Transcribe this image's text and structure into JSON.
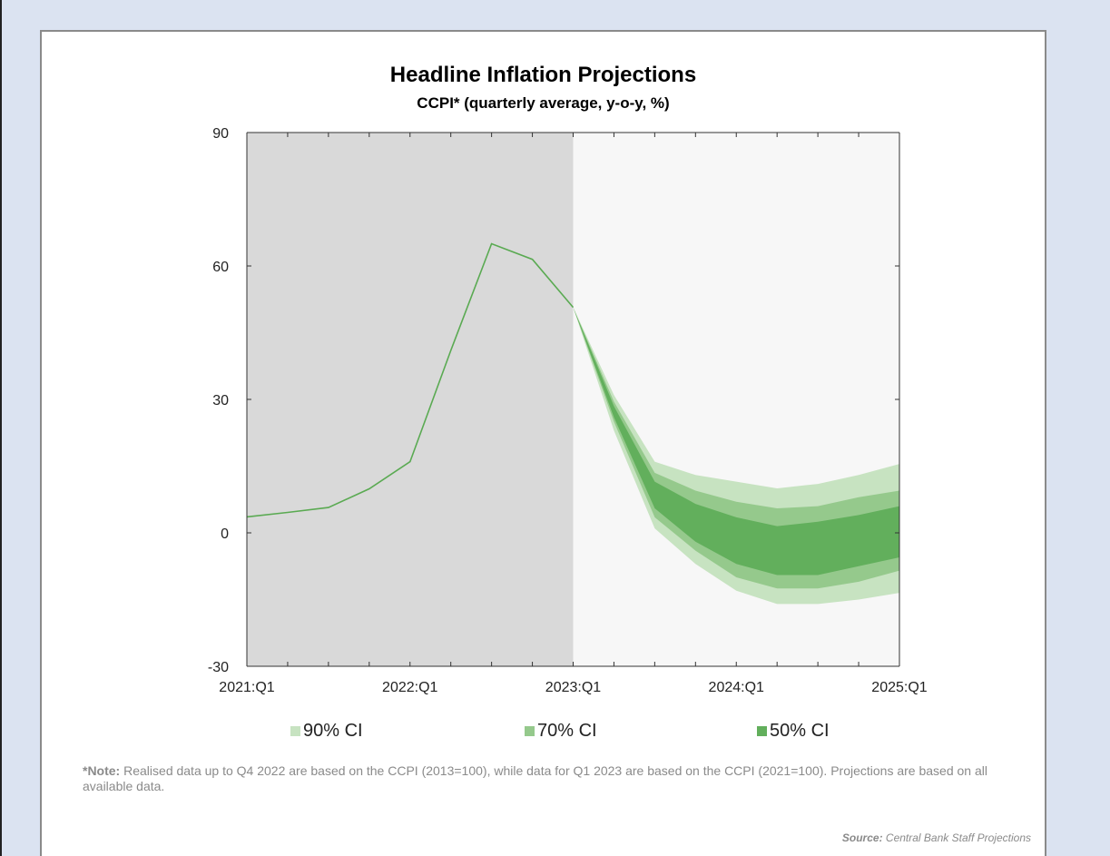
{
  "chart_data": {
    "type": "area",
    "title": "Headline Inflation Projections",
    "subtitle": "CCPI* (quarterly average, y-o-y, %)",
    "ylim": [
      -30,
      90
    ],
    "yticks": [
      -30,
      0,
      30,
      60,
      90
    ],
    "x_categories": [
      "2021:Q1",
      "2021:Q2",
      "2021:Q3",
      "2021:Q4",
      "2022:Q1",
      "2022:Q2",
      "2022:Q3",
      "2022:Q4",
      "2023:Q1",
      "2023:Q2",
      "2023:Q3",
      "2023:Q4",
      "2024:Q1",
      "2024:Q2",
      "2024:Q3",
      "2024:Q4",
      "2025:Q1"
    ],
    "x_tick_labels": [
      {
        "index": 0,
        "label": "2021:Q1"
      },
      {
        "index": 4,
        "label": "2022:Q1"
      },
      {
        "index": 8,
        "label": "2023:Q1"
      },
      {
        "index": 12,
        "label": "2024:Q1"
      },
      {
        "index": 16,
        "label": "2025:Q1"
      }
    ],
    "historical_region": [
      "2021:Q1",
      "2023:Q1"
    ],
    "actual": {
      "x": [
        "2021:Q1",
        "2021:Q2",
        "2021:Q3",
        "2021:Q4",
        "2022:Q1",
        "2022:Q2",
        "2022:Q3",
        "2022:Q4",
        "2023:Q1"
      ],
      "values": [
        3.6,
        4.6,
        5.7,
        9.9,
        16.0,
        41.0,
        65.0,
        61.5,
        50.7
      ]
    },
    "fan": {
      "x": [
        "2023:Q1",
        "2023:Q2",
        "2023:Q3",
        "2023:Q4",
        "2024:Q1",
        "2024:Q2",
        "2024:Q3",
        "2024:Q4",
        "2025:Q1"
      ],
      "ci90": {
        "lower": [
          50.7,
          23.0,
          1.0,
          -7.0,
          -13.0,
          -16.0,
          -16.0,
          -15.0,
          -13.5
        ],
        "upper": [
          50.7,
          31.0,
          16.0,
          13.0,
          11.5,
          10.0,
          11.0,
          13.0,
          15.5
        ]
      },
      "ci70": {
        "lower": [
          50.7,
          25.0,
          3.5,
          -4.0,
          -10.0,
          -12.5,
          -12.5,
          -11.0,
          -8.5
        ],
        "upper": [
          50.7,
          29.5,
          13.5,
          9.5,
          7.0,
          5.5,
          6.0,
          8.0,
          9.5
        ]
      },
      "ci50": {
        "lower": [
          50.7,
          26.0,
          5.5,
          -2.0,
          -7.0,
          -9.5,
          -9.5,
          -7.5,
          -5.5
        ],
        "upper": [
          50.7,
          28.5,
          11.5,
          6.5,
          3.5,
          1.5,
          2.5,
          4.0,
          6.0
        ]
      }
    },
    "legend": [
      "90% CI",
      "70% CI",
      "50% CI"
    ],
    "colors": {
      "historical_bg": "#d9d9d9",
      "projection_bg": "#f7f7f7",
      "line": "#5aaa52",
      "ci90": "#c7e3c1",
      "ci70": "#95c98c",
      "ci50": "#62af5c"
    },
    "grid": false
  },
  "note": {
    "label": "*Note:",
    "text": " Realised data up to Q4 2022 are based on the CCPI (2013=100), while data for Q1 2023 are based on the CCPI (2021=100). Projections are based on all available data."
  },
  "source": {
    "label": "Source:",
    "text": " Central Bank Staff Projections"
  }
}
